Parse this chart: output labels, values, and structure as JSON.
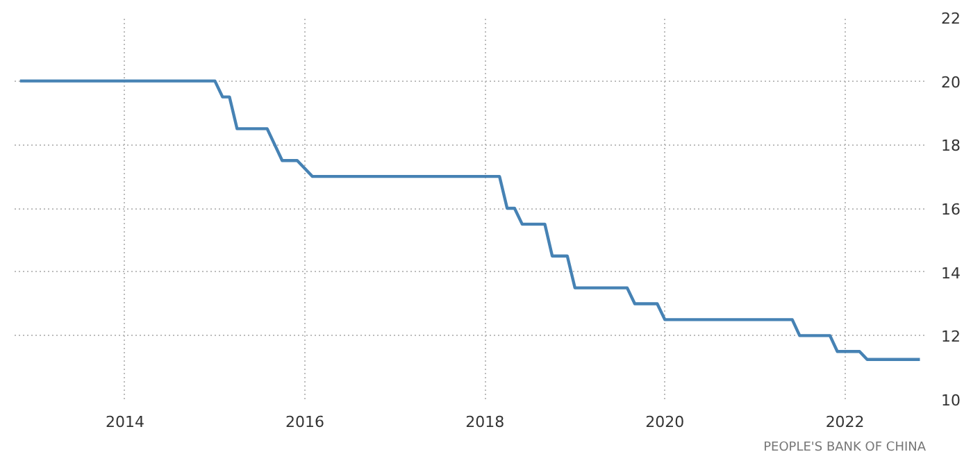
{
  "chart_data": {
    "type": "line",
    "x": [
      "2012-11",
      "2015-01",
      "2015-02",
      "2015-03",
      "2015-04",
      "2015-08",
      "2015-10",
      "2015-12",
      "2016-02",
      "2018-03",
      "2018-04",
      "2018-05",
      "2018-06",
      "2018-09",
      "2018-10",
      "2018-12",
      "2019-01",
      "2019-08",
      "2019-09",
      "2019-12",
      "2020-01",
      "2021-06",
      "2021-07",
      "2021-11",
      "2021-12",
      "2022-03",
      "2022-04",
      "2022-11"
    ],
    "series": [
      {
        "color": "#4682b4",
        "values": [
          20,
          20,
          19.5,
          19.5,
          18.5,
          18.5,
          17.5,
          17.5,
          17,
          17,
          16,
          16,
          15.5,
          15.5,
          14.5,
          14.5,
          13.5,
          13.5,
          13,
          13,
          12.5,
          12.5,
          12,
          12,
          11.5,
          11.5,
          11.25,
          11.25
        ]
      }
    ],
    "xlim": [
      "2012-10-10",
      "2022-11-25"
    ],
    "xticks": [
      {
        "value": "2014-01-01",
        "label": "2014"
      },
      {
        "value": "2016-01-01",
        "label": "2016"
      },
      {
        "value": "2018-01-01",
        "label": "2018"
      },
      {
        "value": "2020-01-01",
        "label": "2020"
      },
      {
        "value": "2022-01-01",
        "label": "2022"
      }
    ],
    "ylim": [
      10,
      22
    ],
    "yticks": [
      10,
      12,
      14,
      16,
      18,
      20,
      22
    ],
    "grid": true,
    "line_style": "solid",
    "annotations": [
      "PEOPLE'S BANK OF CHINA"
    ]
  }
}
